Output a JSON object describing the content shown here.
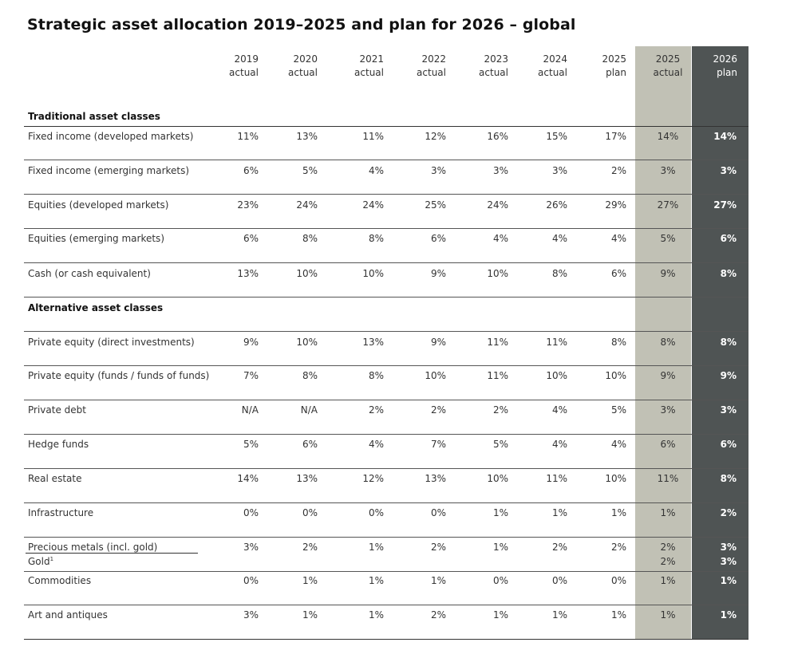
{
  "title": "Strategic asset allocation 2019–2025 and plan for 2026 – global",
  "columns": [
    {
      "year": "2019",
      "kind": "actual"
    },
    {
      "year": "2020",
      "kind": "actual"
    },
    {
      "year": "2021",
      "kind": "actual"
    },
    {
      "year": "2022",
      "kind": "actual"
    },
    {
      "year": "2023",
      "kind": "actual"
    },
    {
      "year": "2024",
      "kind": "actual"
    },
    {
      "year": "2025",
      "kind": "plan"
    },
    {
      "year": "2025",
      "kind": "actual"
    },
    {
      "year": "2026",
      "kind": "plan"
    }
  ],
  "sections": [
    {
      "title": "Traditional asset classes",
      "rows": [
        {
          "label": "Fixed income (developed markets)",
          "values": [
            "11%",
            "13%",
            "11%",
            "12%",
            "16%",
            "15%",
            "17%",
            "14%",
            "14%"
          ]
        },
        {
          "label": "Fixed income (emerging markets)",
          "values": [
            "6%",
            "5%",
            "4%",
            "3%",
            "3%",
            "3%",
            "2%",
            "3%",
            "3%"
          ]
        },
        {
          "label": "Equities (developed markets)",
          "values": [
            "23%",
            "24%",
            "24%",
            "25%",
            "24%",
            "26%",
            "29%",
            "27%",
            "27%"
          ]
        },
        {
          "label": "Equities (emerging markets)",
          "values": [
            "6%",
            "8%",
            "8%",
            "6%",
            "4%",
            "4%",
            "4%",
            "5%",
            "6%"
          ]
        },
        {
          "label": "Cash (or cash equivalent)",
          "values": [
            "13%",
            "10%",
            "10%",
            "9%",
            "10%",
            "8%",
            "6%",
            "9%",
            "8%"
          ]
        }
      ]
    },
    {
      "title": "Alternative asset classes",
      "rows": [
        {
          "label": "Private equity (direct investments)",
          "values": [
            "9%",
            "10%",
            "13%",
            "9%",
            "11%",
            "11%",
            "8%",
            "8%",
            "8%"
          ]
        },
        {
          "label": "Private equity (funds / funds of funds)",
          "values": [
            "7%",
            "8%",
            "8%",
            "10%",
            "11%",
            "10%",
            "10%",
            "9%",
            "9%"
          ]
        },
        {
          "label": "Private debt",
          "values": [
            "N/A",
            "N/A",
            "2%",
            "2%",
            "2%",
            "4%",
            "5%",
            "3%",
            "3%"
          ]
        },
        {
          "label": "Hedge funds",
          "values": [
            "5%",
            "6%",
            "4%",
            "7%",
            "5%",
            "4%",
            "4%",
            "6%",
            "6%"
          ]
        },
        {
          "label": "Real estate",
          "values": [
            "14%",
            "13%",
            "12%",
            "13%",
            "10%",
            "11%",
            "10%",
            "11%",
            "8%"
          ]
        },
        {
          "label": "Infrastructure",
          "values": [
            "0%",
            "0%",
            "0%",
            "0%",
            "1%",
            "1%",
            "1%",
            "1%",
            "2%"
          ]
        },
        {
          "label": "Precious metals (incl. gold)",
          "values": [
            "3%",
            "2%",
            "1%",
            "2%",
            "1%",
            "2%",
            "2%",
            "2%",
            "3%"
          ]
        },
        {
          "label": "Gold",
          "footnote": "1",
          "values": [
            "",
            "",
            "",
            "",
            "",
            "",
            "",
            "2%",
            "3%"
          ]
        },
        {
          "label": "Commodities",
          "values": [
            "0%",
            "1%",
            "1%",
            "1%",
            "0%",
            "0%",
            "0%",
            "1%",
            "1%"
          ]
        },
        {
          "label": "Art and antiques",
          "values": [
            "3%",
            "1%",
            "1%",
            "2%",
            "1%",
            "1%",
            "1%",
            "1%",
            "1%"
          ]
        }
      ]
    }
  ]
}
